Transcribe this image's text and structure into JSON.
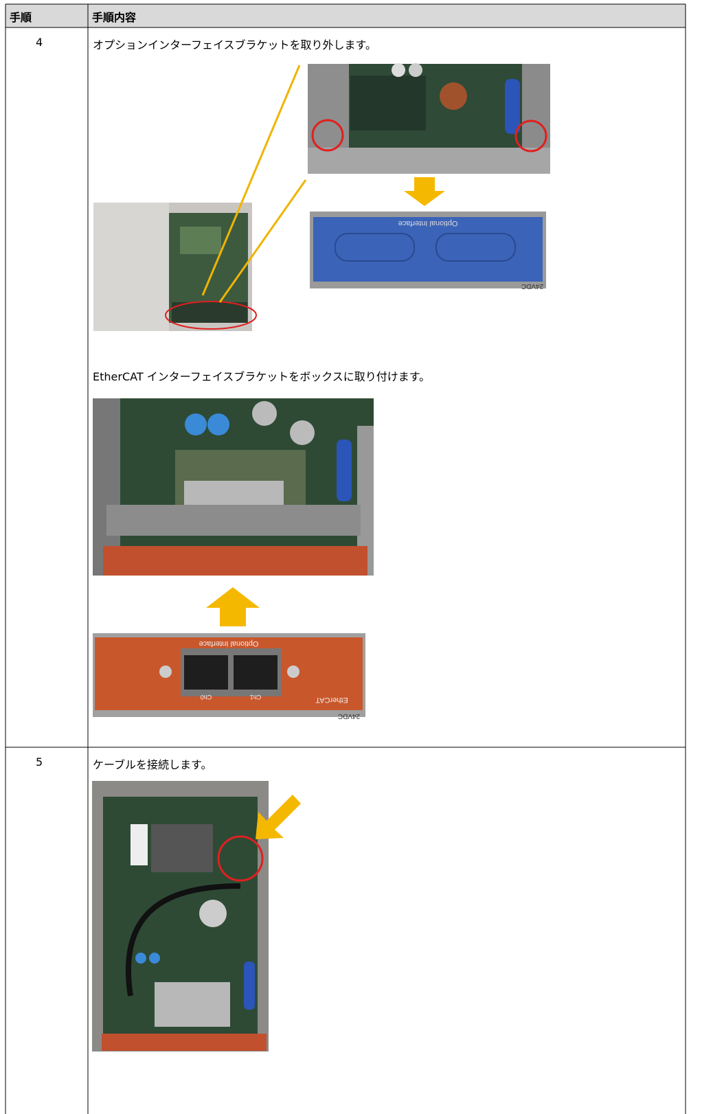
{
  "table": {
    "header": [
      "手順",
      "手順内容"
    ],
    "rows": [
      {
        "step": "4",
        "items": [
          "オプションインターフェイスブラケットを取り外します。",
          "EtherCAT インターフェイスブラケットをボックスに取り付けます。"
        ]
      },
      {
        "step": "5",
        "items": [
          "ケーブルを接続します。"
        ]
      }
    ]
  },
  "photo_labels": {
    "optional_interface": "Optional Interface",
    "ethercat": "EtherCAT",
    "ch0": "Ch0",
    "ch1": "Ch1",
    "voltage": "24VDC"
  }
}
